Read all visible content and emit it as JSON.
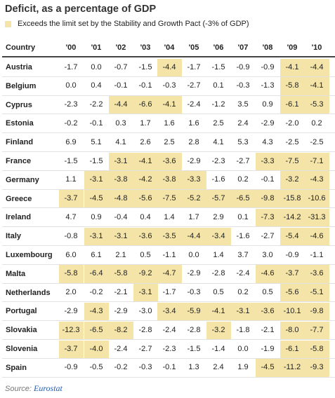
{
  "title": "Deficit, as a percentage of GDP",
  "legend_text": "Exceeds the limit set by the Stability and Growth Pact (-3% of GDP)",
  "highlight_color": "#f4e4a8",
  "source_label": "Source:",
  "source_name": "Eurostat",
  "chart_data": {
    "type": "table",
    "columns": [
      "Country",
      "'00",
      "'01",
      "'02",
      "'03",
      "'04",
      "'05",
      "'06",
      "'07",
      "'08",
      "'09",
      "'10"
    ],
    "threshold": -3.0,
    "rows": [
      {
        "country": "Austria",
        "values": [
          -1.7,
          0.0,
          -0.7,
          -1.5,
          -4.4,
          -1.7,
          -1.5,
          -0.9,
          -0.9,
          -4.1,
          -4.4
        ]
      },
      {
        "country": "Belgium",
        "values": [
          0.0,
          0.4,
          -0.1,
          -0.1,
          -0.3,
          -2.7,
          0.1,
          -0.3,
          -1.3,
          -5.8,
          -4.1
        ]
      },
      {
        "country": "Cyprus",
        "values": [
          -2.3,
          -2.2,
          -4.4,
          -6.6,
          -4.1,
          -2.4,
          -1.2,
          3.5,
          0.9,
          -6.1,
          -5.3
        ]
      },
      {
        "country": "Estonia",
        "values": [
          -0.2,
          -0.1,
          0.3,
          1.7,
          1.6,
          1.6,
          2.5,
          2.4,
          -2.9,
          -2.0,
          0.2
        ]
      },
      {
        "country": "Finland",
        "values": [
          6.9,
          5.1,
          4.1,
          2.6,
          2.5,
          2.8,
          4.1,
          5.3,
          4.3,
          -2.5,
          -2.5
        ]
      },
      {
        "country": "France",
        "values": [
          -1.5,
          -1.5,
          -3.1,
          -4.1,
          -3.6,
          -2.9,
          -2.3,
          -2.7,
          -3.3,
          -7.5,
          -7.1
        ]
      },
      {
        "country": "Germany",
        "values": [
          1.1,
          -3.1,
          -3.8,
          -4.2,
          -3.8,
          -3.3,
          -1.6,
          0.2,
          -0.1,
          -3.2,
          -4.3
        ]
      },
      {
        "country": "Greece",
        "values": [
          -3.7,
          -4.5,
          -4.8,
          -5.6,
          -7.5,
          -5.2,
          -5.7,
          -6.5,
          -9.8,
          -15.8,
          -10.6
        ]
      },
      {
        "country": "Ireland",
        "values": [
          4.7,
          0.9,
          -0.4,
          0.4,
          1.4,
          1.7,
          2.9,
          0.1,
          -7.3,
          -14.2,
          -31.3
        ]
      },
      {
        "country": "Italy",
        "values": [
          -0.8,
          -3.1,
          -3.1,
          -3.6,
          -3.5,
          -4.4,
          -3.4,
          -1.6,
          -2.7,
          -5.4,
          -4.6
        ]
      },
      {
        "country": "Luxembourg",
        "values": [
          6.0,
          6.1,
          2.1,
          0.5,
          -1.1,
          0.0,
          1.4,
          3.7,
          3.0,
          -0.9,
          -1.1
        ]
      },
      {
        "country": "Malta",
        "values": [
          -5.8,
          -6.4,
          -5.8,
          -9.2,
          -4.7,
          -2.9,
          -2.8,
          -2.4,
          -4.6,
          -3.7,
          -3.6
        ]
      },
      {
        "country": "Netherlands",
        "values": [
          2.0,
          -0.2,
          -2.1,
          -3.1,
          -1.7,
          -0.3,
          0.5,
          0.2,
          0.5,
          -5.6,
          -5.1
        ]
      },
      {
        "country": "Portugal",
        "values": [
          -2.9,
          -4.3,
          -2.9,
          -3.0,
          -3.4,
          -5.9,
          -4.1,
          -3.1,
          -3.6,
          -10.1,
          -9.8
        ]
      },
      {
        "country": "Slovakia",
        "values": [
          -12.3,
          -6.5,
          -8.2,
          -2.8,
          -2.4,
          -2.8,
          -3.2,
          -1.8,
          -2.1,
          -8.0,
          -7.7
        ]
      },
      {
        "country": "Slovenia",
        "values": [
          -3.7,
          -4.0,
          -2.4,
          -2.7,
          -2.3,
          -1.5,
          -1.4,
          0.0,
          -1.9,
          -6.1,
          -5.8
        ]
      },
      {
        "country": "Spain",
        "values": [
          -0.9,
          -0.5,
          -0.2,
          -0.3,
          -0.1,
          1.3,
          2.4,
          1.9,
          -4.5,
          -11.2,
          -9.3
        ]
      }
    ]
  }
}
